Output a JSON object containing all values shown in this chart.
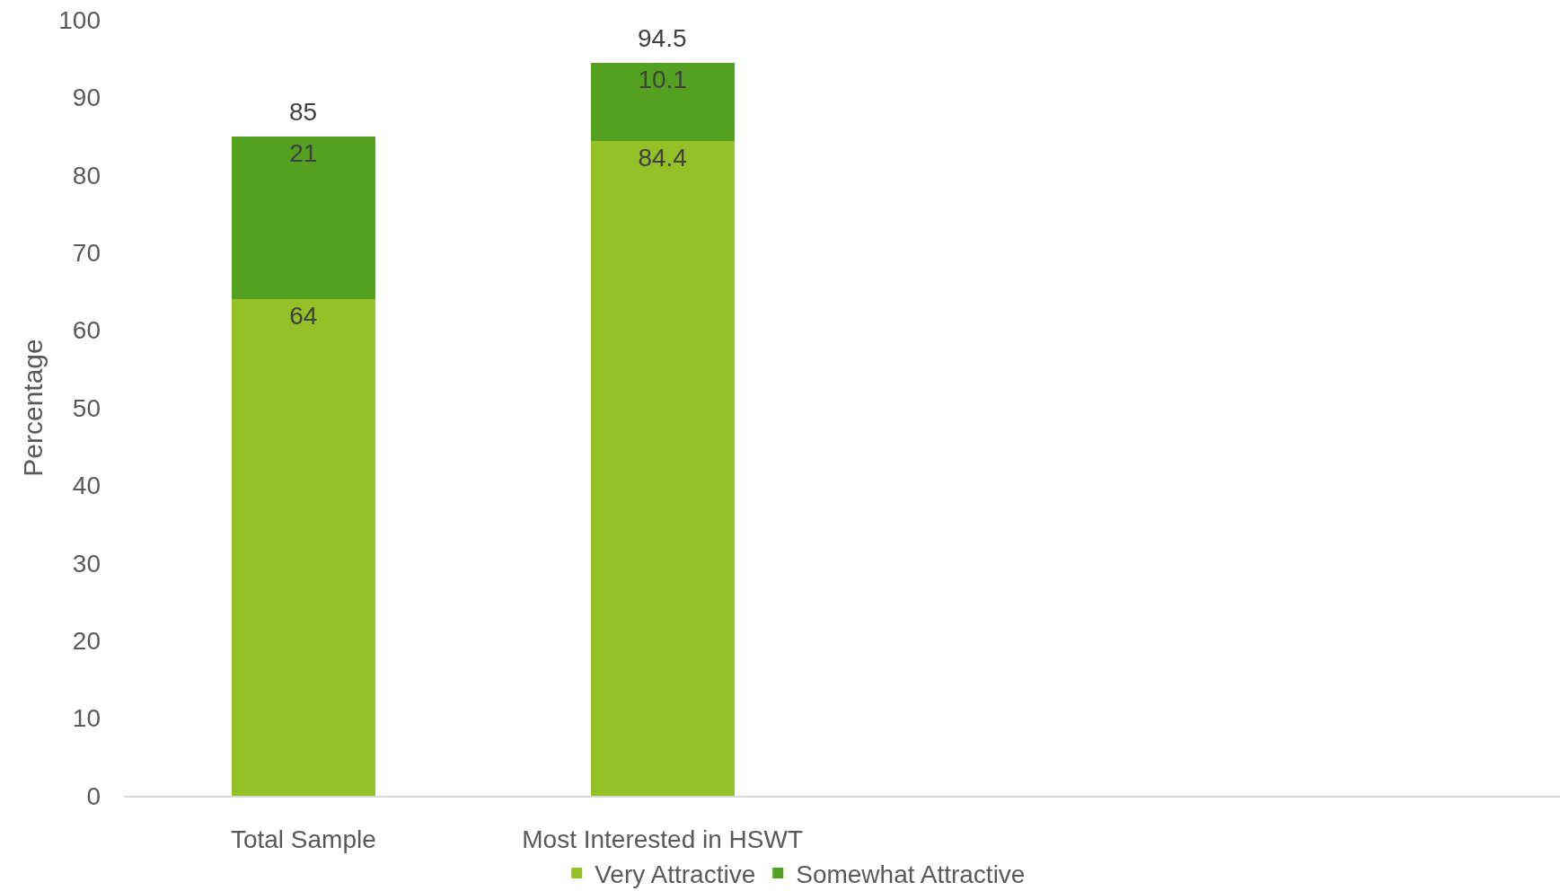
{
  "chart_data": {
    "type": "bar",
    "stacked": true,
    "ylabel": "Percentage",
    "categories": [
      "Total Sample",
      "Most Interested in HSWT",
      null,
      null
    ],
    "series": [
      {
        "name": "Very Attractive",
        "color": "#93c127",
        "values": [
          64,
          84.4,
          null,
          null
        ]
      },
      {
        "name": "Somewhat Attractive",
        "color": "#54a021",
        "values": [
          21,
          10.1,
          null,
          null
        ]
      }
    ],
    "totals": [
      "85",
      "94.5",
      null,
      null
    ],
    "ylim": [
      0,
      100
    ],
    "yticks": [
      0,
      10,
      20,
      30,
      40,
      50,
      60,
      70,
      80,
      90,
      100
    ],
    "data_labels": true,
    "grid": false,
    "legend": "bottom"
  }
}
